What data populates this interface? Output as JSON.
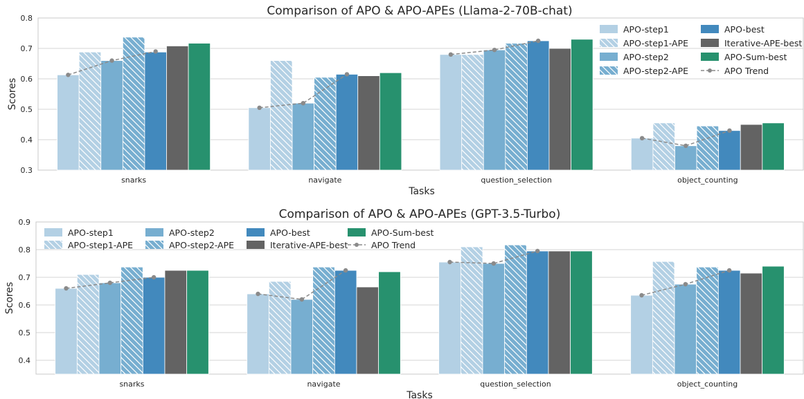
{
  "colors": {
    "apo_step1": "#b3d0e4",
    "apo_step1_ape": "#b3d0e4",
    "apo_step2": "#77aed0",
    "apo_step2_ape": "#77aed0",
    "apo_best": "#4289bd",
    "iterative_ape_best": "#636363",
    "apo_sum_best": "#27916e",
    "trend": "#8a8a8a",
    "grid": "#d4d4d4",
    "frame": "#c8c8c8"
  },
  "chart_data": [
    {
      "type": "bar",
      "title": "Comparison of APO & APO-APEs (Llama-2-70B-chat)",
      "xlabel": "Tasks",
      "ylabel": "Scores",
      "ylim": [
        0.3,
        0.8
      ],
      "yticks": [
        "0.3",
        "0.4",
        "0.5",
        "0.6",
        "0.7",
        "0.8"
      ],
      "grid": true,
      "legend_placement": "top-right",
      "categories": [
        "snarks",
        "navigate",
        "question_selection",
        "object_counting"
      ],
      "series": [
        {
          "name": "APO-step1",
          "values": [
            0.613,
            0.505,
            0.68,
            0.405
          ]
        },
        {
          "name": "APO-step1-APE",
          "values": [
            0.688,
            0.66,
            0.68,
            0.455
          ]
        },
        {
          "name": "APO-step2",
          "values": [
            0.66,
            0.52,
            0.695,
            0.38
          ]
        },
        {
          "name": "APO-step2-APE",
          "values": [
            0.737,
            0.605,
            0.717,
            0.445
          ]
        },
        {
          "name": "APO-best",
          "values": [
            0.688,
            0.615,
            0.725,
            0.43
          ]
        },
        {
          "name": "Iterative-APE-best",
          "values": [
            0.708,
            0.61,
            0.7,
            0.45
          ]
        },
        {
          "name": "APO-Sum-best",
          "values": [
            0.717,
            0.62,
            0.73,
            0.455
          ]
        }
      ],
      "trend": {
        "name": "APO Trend",
        "values": [
          [
            0.613,
            0.66,
            0.69
          ],
          [
            0.505,
            0.52,
            0.615
          ],
          [
            0.68,
            0.695,
            0.725
          ],
          [
            0.405,
            0.38,
            0.43
          ]
        ]
      }
    },
    {
      "type": "bar",
      "title": "Comparison of APO & APO-APEs (GPT-3.5-Turbo)",
      "xlabel": "Tasks",
      "ylabel": "Scores",
      "ylim": [
        0.35,
        0.9
      ],
      "yticks": [
        "0.4",
        "0.5",
        "0.6",
        "0.7",
        "0.8",
        "0.9"
      ],
      "grid": true,
      "legend_placement": "top-left",
      "categories": [
        "snarks",
        "navigate",
        "question_selection",
        "object_counting"
      ],
      "series": [
        {
          "name": "APO-step1",
          "values": [
            0.66,
            0.64,
            0.755,
            0.635
          ]
        },
        {
          "name": "APO-step1-APE",
          "values": [
            0.71,
            0.685,
            0.81,
            0.757
          ]
        },
        {
          "name": "APO-step2",
          "values": [
            0.68,
            0.62,
            0.75,
            0.675
          ]
        },
        {
          "name": "APO-step2-APE",
          "values": [
            0.737,
            0.737,
            0.817,
            0.737
          ]
        },
        {
          "name": "APO-best",
          "values": [
            0.7,
            0.725,
            0.795,
            0.725
          ]
        },
        {
          "name": "Iterative-APE-best",
          "values": [
            0.725,
            0.665,
            0.795,
            0.715
          ]
        },
        {
          "name": "APO-Sum-best",
          "values": [
            0.725,
            0.72,
            0.795,
            0.74
          ]
        }
      ],
      "trend": {
        "name": "APO Trend",
        "values": [
          [
            0.66,
            0.68,
            0.7
          ],
          [
            0.64,
            0.62,
            0.725
          ],
          [
            0.755,
            0.75,
            0.795
          ],
          [
            0.635,
            0.675,
            0.725
          ]
        ]
      }
    }
  ]
}
